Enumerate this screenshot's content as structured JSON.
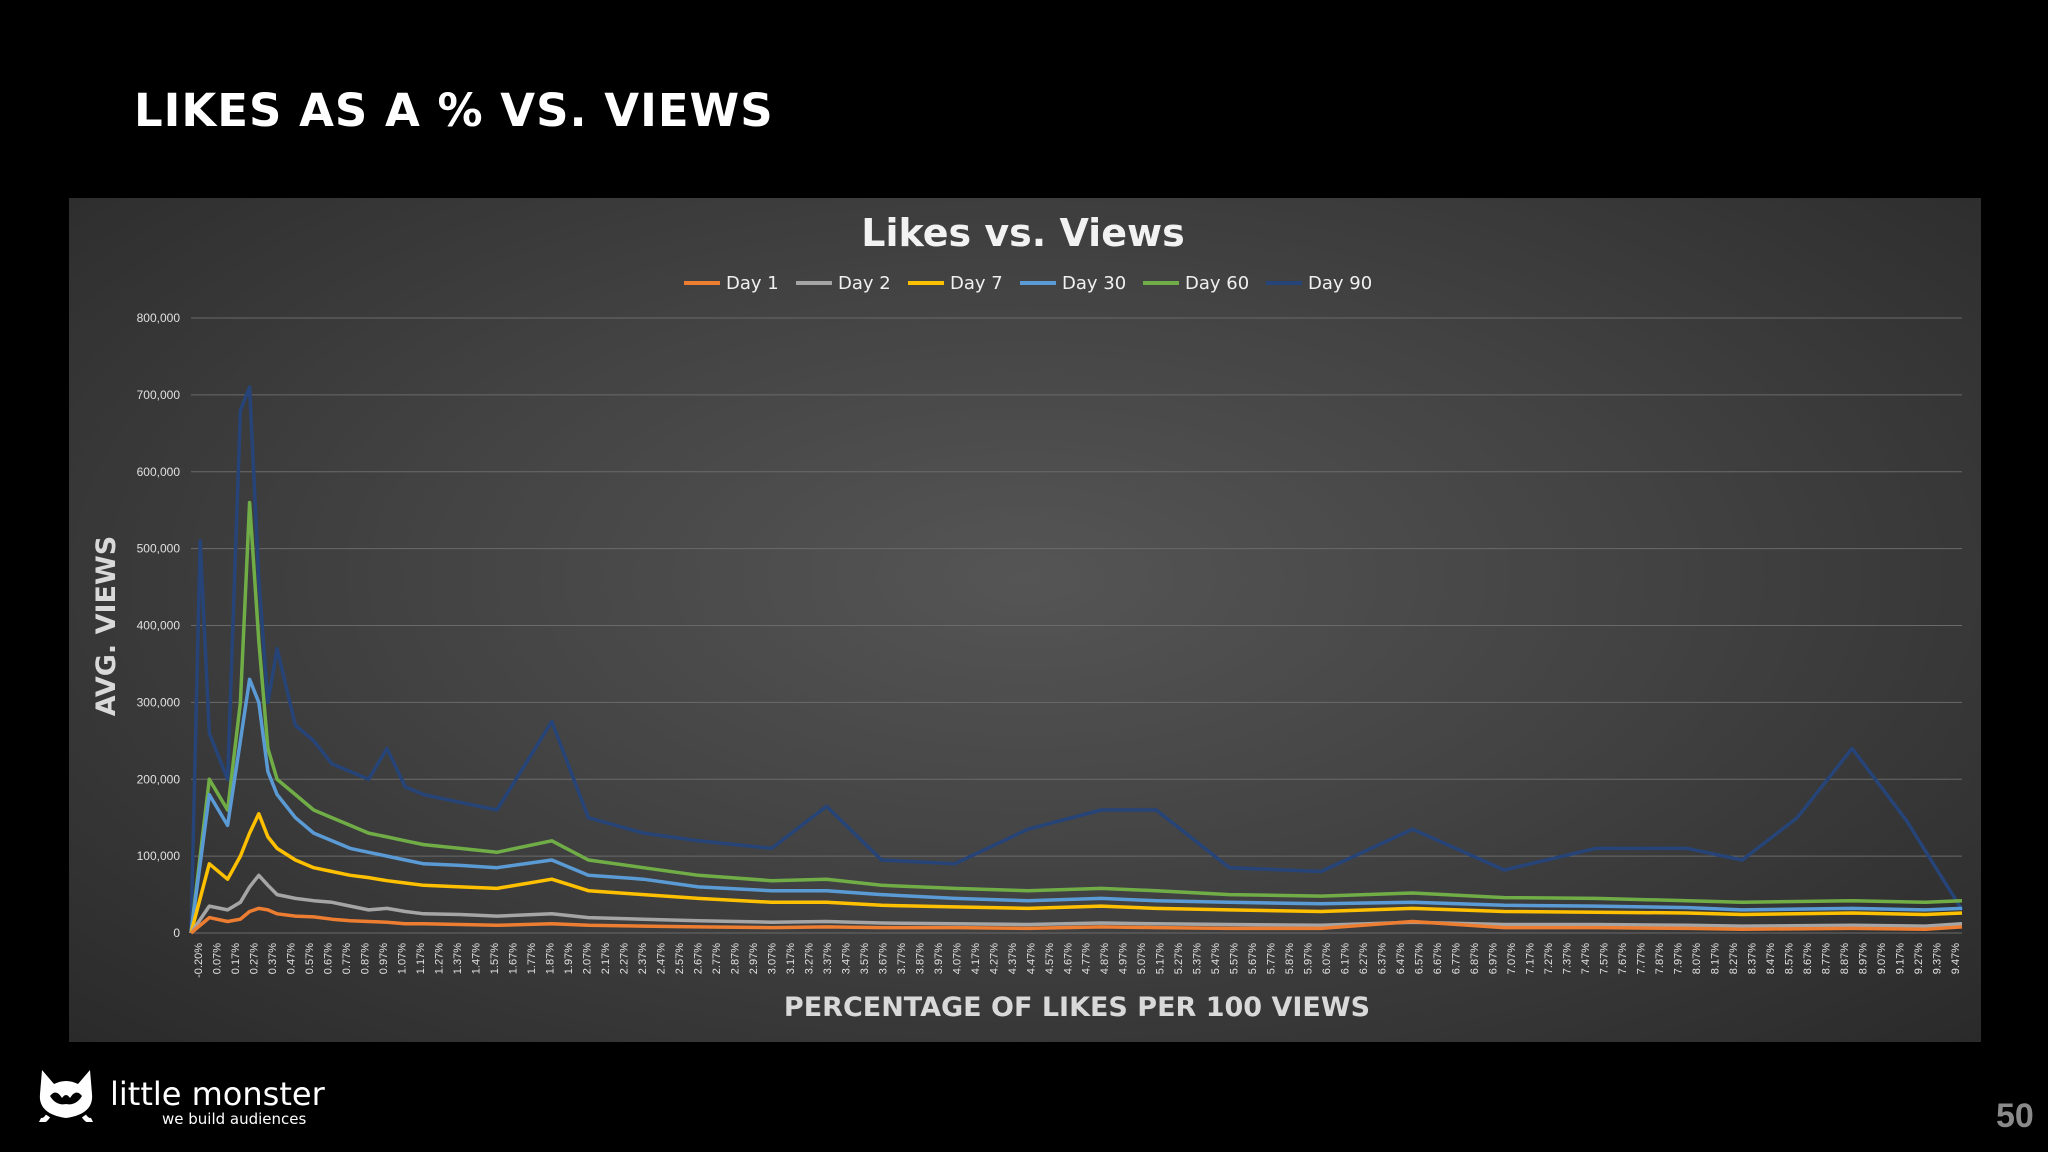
{
  "slide": {
    "title": "LIKES AS A % VS. VIEWS",
    "page_number": "50"
  },
  "branding": {
    "name": "little monster",
    "tagline": "we build audiences",
    "logo_icon": "monster-cat-icon"
  },
  "chart_data": {
    "type": "line",
    "title": "Likes vs. Views",
    "xlabel": "PERCENTAGE OF LIKES PER 100 VIEWS",
    "ylabel": "AVG. VIEWS",
    "ylim": [
      0,
      800000
    ],
    "yticks": [
      "0",
      "100,000",
      "200,000",
      "300,000",
      "400,000",
      "500,000",
      "600,000",
      "700,000",
      "800,000"
    ],
    "x_domain": [
      -0.2,
      9.47
    ],
    "x_tick_labels": [
      "-0.20%",
      "0.07%",
      "0.17%",
      "0.27%",
      "0.37%",
      "0.47%",
      "0.57%",
      "0.67%",
      "0.77%",
      "0.87%",
      "0.97%",
      "1.07%",
      "1.17%",
      "1.27%",
      "1.37%",
      "1.47%",
      "1.57%",
      "1.67%",
      "1.77%",
      "1.87%",
      "1.97%",
      "2.07%",
      "2.17%",
      "2.27%",
      "2.37%",
      "2.47%",
      "2.57%",
      "2.67%",
      "2.77%",
      "2.87%",
      "2.97%",
      "3.07%",
      "3.17%",
      "3.27%",
      "3.37%",
      "3.47%",
      "3.57%",
      "3.67%",
      "3.77%",
      "3.87%",
      "3.97%",
      "4.07%",
      "4.17%",
      "4.27%",
      "4.37%",
      "4.47%",
      "4.57%",
      "4.67%",
      "4.77%",
      "4.87%",
      "4.97%",
      "5.07%",
      "5.17%",
      "5.27%",
      "5.37%",
      "5.47%",
      "5.57%",
      "5.67%",
      "5.77%",
      "5.87%",
      "5.97%",
      "6.07%",
      "6.17%",
      "6.27%",
      "6.37%",
      "6.47%",
      "6.57%",
      "6.67%",
      "6.77%",
      "6.87%",
      "6.97%",
      "7.07%",
      "7.17%",
      "7.27%",
      "7.37%",
      "7.47%",
      "7.57%",
      "7.67%",
      "7.77%",
      "7.87%",
      "7.97%",
      "8.07%",
      "8.17%",
      "8.27%",
      "8.37%",
      "8.47%",
      "8.57%",
      "8.67%",
      "8.77%",
      "8.87%",
      "8.97%",
      "9.07%",
      "9.17%",
      "9.27%",
      "9.37%",
      "9.47%"
    ],
    "grid": "horizontal",
    "legend_position": "top-center",
    "series": [
      {
        "name": "Day 1",
        "color": "#ED7D31",
        "points": [
          [
            -0.2,
            0
          ],
          [
            -0.1,
            20000
          ],
          [
            0.0,
            15000
          ],
          [
            0.07,
            18000
          ],
          [
            0.12,
            28000
          ],
          [
            0.17,
            32000
          ],
          [
            0.22,
            30000
          ],
          [
            0.27,
            25000
          ],
          [
            0.37,
            22000
          ],
          [
            0.47,
            21000
          ],
          [
            0.57,
            18000
          ],
          [
            0.67,
            16000
          ],
          [
            0.77,
            15000
          ],
          [
            0.87,
            14000
          ],
          [
            0.97,
            12000
          ],
          [
            1.07,
            12000
          ],
          [
            1.27,
            11000
          ],
          [
            1.47,
            10000
          ],
          [
            1.77,
            12000
          ],
          [
            1.97,
            10000
          ],
          [
            2.27,
            9000
          ],
          [
            2.57,
            8000
          ],
          [
            2.97,
            7000
          ],
          [
            3.27,
            8000
          ],
          [
            3.57,
            7000
          ],
          [
            3.97,
            7000
          ],
          [
            4.37,
            6000
          ],
          [
            4.77,
            8000
          ],
          [
            5.07,
            7000
          ],
          [
            5.47,
            6000
          ],
          [
            5.97,
            6000
          ],
          [
            6.47,
            15000
          ],
          [
            6.97,
            7000
          ],
          [
            7.47,
            7000
          ],
          [
            7.97,
            6000
          ],
          [
            8.27,
            5000
          ],
          [
            8.87,
            6000
          ],
          [
            9.27,
            5000
          ],
          [
            9.47,
            8000
          ]
        ]
      },
      {
        "name": "Day 2",
        "color": "#A5A5A5",
        "points": [
          [
            -0.2,
            0
          ],
          [
            -0.1,
            35000
          ],
          [
            0.0,
            30000
          ],
          [
            0.07,
            40000
          ],
          [
            0.12,
            60000
          ],
          [
            0.17,
            75000
          ],
          [
            0.22,
            62000
          ],
          [
            0.27,
            50000
          ],
          [
            0.37,
            45000
          ],
          [
            0.47,
            42000
          ],
          [
            0.57,
            40000
          ],
          [
            0.67,
            35000
          ],
          [
            0.77,
            30000
          ],
          [
            0.87,
            32000
          ],
          [
            0.97,
            28000
          ],
          [
            1.07,
            25000
          ],
          [
            1.27,
            24000
          ],
          [
            1.47,
            22000
          ],
          [
            1.77,
            25000
          ],
          [
            1.97,
            20000
          ],
          [
            2.27,
            18000
          ],
          [
            2.57,
            16000
          ],
          [
            2.97,
            14000
          ],
          [
            3.27,
            15000
          ],
          [
            3.57,
            13000
          ],
          [
            3.97,
            12000
          ],
          [
            4.37,
            11000
          ],
          [
            4.77,
            13000
          ],
          [
            5.07,
            12000
          ],
          [
            5.47,
            11000
          ],
          [
            5.97,
            10000
          ],
          [
            6.47,
            14000
          ],
          [
            6.97,
            11000
          ],
          [
            7.47,
            11000
          ],
          [
            7.97,
            10000
          ],
          [
            8.27,
            9000
          ],
          [
            8.87,
            10000
          ],
          [
            9.27,
            9000
          ],
          [
            9.47,
            12000
          ]
        ]
      },
      {
        "name": "Day 7",
        "color": "#FFC000",
        "points": [
          [
            -0.2,
            0
          ],
          [
            -0.1,
            90000
          ],
          [
            0.0,
            70000
          ],
          [
            0.07,
            100000
          ],
          [
            0.12,
            130000
          ],
          [
            0.17,
            155000
          ],
          [
            0.22,
            125000
          ],
          [
            0.27,
            110000
          ],
          [
            0.37,
            95000
          ],
          [
            0.47,
            85000
          ],
          [
            0.57,
            80000
          ],
          [
            0.67,
            75000
          ],
          [
            0.77,
            72000
          ],
          [
            0.87,
            68000
          ],
          [
            0.97,
            65000
          ],
          [
            1.07,
            62000
          ],
          [
            1.27,
            60000
          ],
          [
            1.47,
            58000
          ],
          [
            1.77,
            70000
          ],
          [
            1.97,
            55000
          ],
          [
            2.27,
            50000
          ],
          [
            2.57,
            45000
          ],
          [
            2.97,
            40000
          ],
          [
            3.27,
            40000
          ],
          [
            3.57,
            36000
          ],
          [
            3.97,
            34000
          ],
          [
            4.37,
            32000
          ],
          [
            4.77,
            35000
          ],
          [
            5.07,
            32000
          ],
          [
            5.47,
            30000
          ],
          [
            5.97,
            28000
          ],
          [
            6.47,
            32000
          ],
          [
            6.97,
            28000
          ],
          [
            7.47,
            27000
          ],
          [
            7.97,
            26000
          ],
          [
            8.27,
            24000
          ],
          [
            8.87,
            26000
          ],
          [
            9.27,
            24000
          ],
          [
            9.47,
            26000
          ]
        ]
      },
      {
        "name": "Day 30",
        "color": "#5B9BD5",
        "points": [
          [
            -0.2,
            0
          ],
          [
            -0.1,
            180000
          ],
          [
            0.0,
            140000
          ],
          [
            0.07,
            250000
          ],
          [
            0.12,
            330000
          ],
          [
            0.17,
            300000
          ],
          [
            0.22,
            210000
          ],
          [
            0.27,
            180000
          ],
          [
            0.37,
            150000
          ],
          [
            0.47,
            130000
          ],
          [
            0.57,
            120000
          ],
          [
            0.67,
            110000
          ],
          [
            0.77,
            105000
          ],
          [
            0.87,
            100000
          ],
          [
            0.97,
            95000
          ],
          [
            1.07,
            90000
          ],
          [
            1.27,
            88000
          ],
          [
            1.47,
            85000
          ],
          [
            1.77,
            95000
          ],
          [
            1.97,
            75000
          ],
          [
            2.27,
            70000
          ],
          [
            2.57,
            60000
          ],
          [
            2.97,
            55000
          ],
          [
            3.27,
            55000
          ],
          [
            3.57,
            50000
          ],
          [
            3.97,
            45000
          ],
          [
            4.37,
            42000
          ],
          [
            4.77,
            45000
          ],
          [
            5.07,
            42000
          ],
          [
            5.47,
            40000
          ],
          [
            5.97,
            38000
          ],
          [
            6.47,
            40000
          ],
          [
            6.97,
            36000
          ],
          [
            7.47,
            35000
          ],
          [
            7.97,
            33000
          ],
          [
            8.27,
            30000
          ],
          [
            8.87,
            32000
          ],
          [
            9.27,
            30000
          ],
          [
            9.47,
            32000
          ]
        ]
      },
      {
        "name": "Day 60",
        "color": "#70AD47",
        "points": [
          [
            -0.2,
            0
          ],
          [
            -0.1,
            200000
          ],
          [
            0.0,
            160000
          ],
          [
            0.07,
            300000
          ],
          [
            0.12,
            560000
          ],
          [
            0.17,
            380000
          ],
          [
            0.22,
            240000
          ],
          [
            0.27,
            200000
          ],
          [
            0.37,
            180000
          ],
          [
            0.47,
            160000
          ],
          [
            0.57,
            150000
          ],
          [
            0.67,
            140000
          ],
          [
            0.77,
            130000
          ],
          [
            0.87,
            125000
          ],
          [
            0.97,
            120000
          ],
          [
            1.07,
            115000
          ],
          [
            1.27,
            110000
          ],
          [
            1.47,
            105000
          ],
          [
            1.77,
            120000
          ],
          [
            1.97,
            95000
          ],
          [
            2.27,
            85000
          ],
          [
            2.57,
            75000
          ],
          [
            2.97,
            68000
          ],
          [
            3.27,
            70000
          ],
          [
            3.57,
            62000
          ],
          [
            3.97,
            58000
          ],
          [
            4.37,
            55000
          ],
          [
            4.77,
            58000
          ],
          [
            5.07,
            55000
          ],
          [
            5.47,
            50000
          ],
          [
            5.97,
            48000
          ],
          [
            6.47,
            52000
          ],
          [
            6.97,
            46000
          ],
          [
            7.47,
            45000
          ],
          [
            7.97,
            42000
          ],
          [
            8.27,
            40000
          ],
          [
            8.87,
            42000
          ],
          [
            9.27,
            40000
          ],
          [
            9.47,
            42000
          ]
        ]
      },
      {
        "name": "Day 90",
        "color": "#264478",
        "points": [
          [
            -0.2,
            0
          ],
          [
            -0.15,
            510000
          ],
          [
            -0.1,
            260000
          ],
          [
            0.0,
            200000
          ],
          [
            0.07,
            680000
          ],
          [
            0.12,
            710000
          ],
          [
            0.17,
            460000
          ],
          [
            0.22,
            300000
          ],
          [
            0.27,
            370000
          ],
          [
            0.37,
            270000
          ],
          [
            0.47,
            250000
          ],
          [
            0.57,
            220000
          ],
          [
            0.67,
            210000
          ],
          [
            0.77,
            200000
          ],
          [
            0.87,
            240000
          ],
          [
            0.97,
            190000
          ],
          [
            1.07,
            180000
          ],
          [
            1.27,
            170000
          ],
          [
            1.47,
            160000
          ],
          [
            1.77,
            275000
          ],
          [
            1.97,
            150000
          ],
          [
            2.27,
            130000
          ],
          [
            2.57,
            120000
          ],
          [
            2.97,
            110000
          ],
          [
            3.27,
            165000
          ],
          [
            3.57,
            95000
          ],
          [
            3.97,
            90000
          ],
          [
            4.37,
            135000
          ],
          [
            4.77,
            160000
          ],
          [
            5.07,
            160000
          ],
          [
            5.47,
            85000
          ],
          [
            5.97,
            80000
          ],
          [
            6.47,
            135000
          ],
          [
            6.97,
            82000
          ],
          [
            7.47,
            110000
          ],
          [
            7.97,
            110000
          ],
          [
            8.27,
            95000
          ],
          [
            8.57,
            150000
          ],
          [
            8.87,
            240000
          ],
          [
            9.17,
            145000
          ],
          [
            9.47,
            30000
          ]
        ]
      }
    ]
  }
}
